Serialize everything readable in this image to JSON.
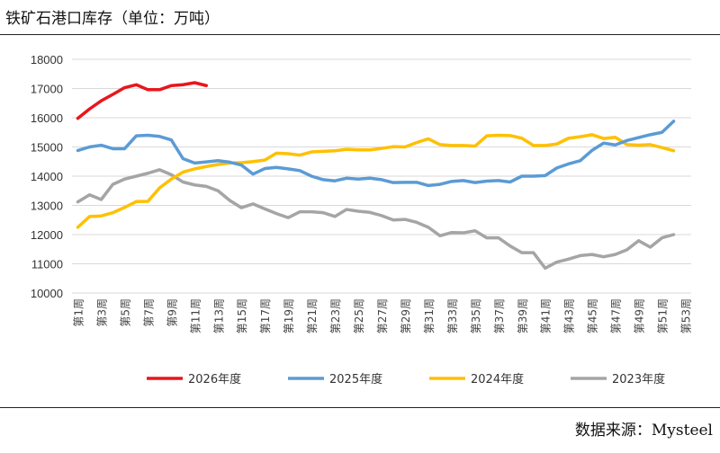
{
  "title": "铁矿石港口库存（单位：万吨）",
  "source": "数据来源：Mysteel",
  "chart_data": {
    "type": "line",
    "title": "铁矿石港口库存（单位：万吨）",
    "xlabel": "",
    "ylabel": "",
    "ylim": [
      10000,
      18000
    ],
    "yticks": [
      10000,
      11000,
      12000,
      13000,
      14000,
      15000,
      16000,
      17000,
      18000
    ],
    "categories_count": 53,
    "category_format": "第{n}周",
    "grid": "horizontal",
    "legend": "bottom",
    "series": [
      {
        "name": "2026年度",
        "color": "#e8161b",
        "values": [
          15980,
          16300,
          16580,
          16800,
          17030,
          17130,
          16960,
          16960,
          17100,
          17130,
          17200,
          17100
        ]
      },
      {
        "name": "2025年度",
        "color": "#5b9bd5",
        "values": [
          14880,
          15000,
          15060,
          14940,
          14940,
          15380,
          15400,
          15360,
          15240,
          14600,
          14450,
          14490,
          14530,
          14480,
          14380,
          14070,
          14260,
          14300,
          14250,
          14190,
          14000,
          13880,
          13840,
          13930,
          13900,
          13930,
          13880,
          13780,
          13790,
          13790,
          13680,
          13720,
          13820,
          13850,
          13780,
          13830,
          13850,
          13800,
          14000,
          14000,
          14020,
          14280,
          14420,
          14530,
          14880,
          15130,
          15070,
          15220,
          15320,
          15420,
          15500,
          15880
        ]
      },
      {
        "name": "2024年度",
        "color": "#ffc000",
        "values": [
          12250,
          12620,
          12640,
          12750,
          12930,
          13130,
          13140,
          13600,
          13900,
          14140,
          14250,
          14330,
          14400,
          14450,
          14460,
          14500,
          14550,
          14790,
          14770,
          14720,
          14830,
          14850,
          14870,
          14920,
          14900,
          14900,
          14950,
          15010,
          15000,
          15150,
          15280,
          15080,
          15050,
          15050,
          15030,
          15380,
          15400,
          15390,
          15300,
          15050,
          15050,
          15100,
          15300,
          15350,
          15420,
          15290,
          15330,
          15080,
          15060,
          15080,
          14980,
          14870
        ]
      },
      {
        "name": "2023年度",
        "color": "#a5a5a5",
        "values": [
          13120,
          13360,
          13200,
          13720,
          13900,
          14000,
          14100,
          14220,
          14050,
          13800,
          13700,
          13650,
          13500,
          13170,
          12920,
          13050,
          12880,
          12720,
          12580,
          12780,
          12780,
          12750,
          12620,
          12860,
          12800,
          12760,
          12650,
          12500,
          12520,
          12420,
          12250,
          11960,
          12070,
          12060,
          12130,
          11890,
          11890,
          11610,
          11380,
          11380,
          10850,
          11060,
          11160,
          11280,
          11320,
          11240,
          11320,
          11480,
          11790,
          11570,
          11890,
          12000
        ]
      }
    ]
  }
}
